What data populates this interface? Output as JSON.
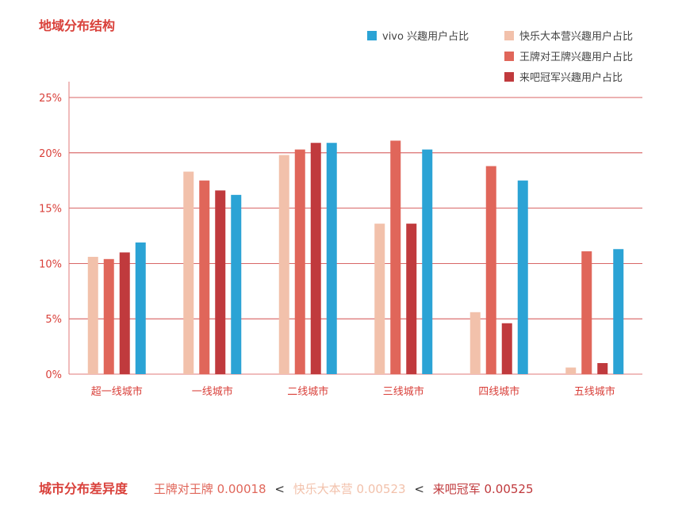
{
  "title": "地域分布结构",
  "colors": {
    "vivo": "#2ba3d5",
    "kuaile": "#f2c1ab",
    "wangpai": "#e0665a",
    "laiba": "#c03a3d",
    "axis": "#e07a7a",
    "grid": "#cc3333",
    "tick_text": "#d9403a"
  },
  "chart_data": {
    "type": "bar",
    "title": "地域分布结构",
    "categories": [
      "超一线城市",
      "一线城市",
      "二线城市",
      "三线城市",
      "四线城市",
      "五线城市"
    ],
    "series": [
      {
        "name": "快乐大本营兴趣用户占比",
        "color_key": "kuaile",
        "values": [
          10.6,
          18.3,
          19.8,
          13.6,
          5.6,
          0.6
        ]
      },
      {
        "name": "王牌对王牌兴趣用户占比",
        "color_key": "wangpai",
        "values": [
          10.4,
          17.5,
          20.3,
          21.1,
          18.8,
          11.1
        ]
      },
      {
        "name": "来吧冠军兴趣用户占比",
        "color_key": "laiba",
        "values": [
          11.0,
          16.6,
          20.9,
          13.6,
          4.6,
          1.0
        ]
      },
      {
        "name": "vivo 兴趣用户占比",
        "color_key": "vivo",
        "values": [
          11.9,
          16.2,
          20.9,
          20.3,
          17.5,
          11.3
        ]
      }
    ],
    "yticks": [
      "0%",
      "5%",
      "10%",
      "15%",
      "20%",
      "25%"
    ],
    "ylim": [
      0,
      25
    ],
    "xlabel": "",
    "ylabel": "",
    "legend": [
      {
        "name": "vivo 兴趣用户占比",
        "color_key": "vivo"
      },
      {
        "name": "快乐大本营兴趣用户占比",
        "color_key": "kuaile"
      },
      {
        "name": "王牌对王牌兴趣用户占比",
        "color_key": "wangpai"
      },
      {
        "name": "来吧冠军兴趣用户占比",
        "color_key": "laiba"
      }
    ],
    "grid": true,
    "legend_position": "top-right"
  },
  "footer": {
    "title": "城市分布差异度",
    "items": [
      {
        "label": "王牌对王牌 0.00018",
        "color_key": "wangpai"
      },
      {
        "label": "快乐大本营 0.00523",
        "color_key": "kuaile"
      },
      {
        "label": "来吧冠军 0.00525",
        "color_key": "laiba"
      }
    ],
    "separator": "<"
  }
}
